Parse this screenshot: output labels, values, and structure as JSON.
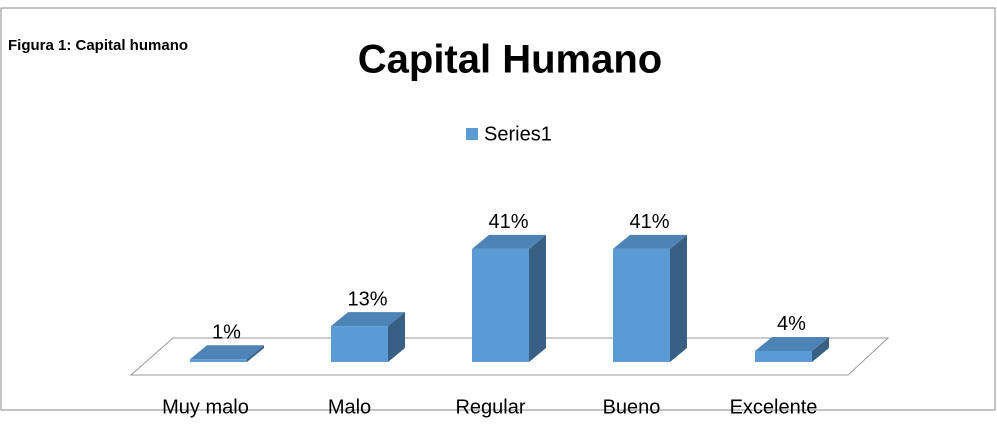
{
  "figure_label": "Figura 1: Capital humano",
  "chart_data": {
    "type": "bar3d",
    "title": "Capital Humano",
    "categories": [
      "Muy malo",
      "Malo",
      "Regular",
      "Bueno",
      "Excelente"
    ],
    "series": [
      {
        "name": "Series1",
        "color": "#5b9bd5",
        "values": [
          1,
          13,
          41,
          41,
          4
        ],
        "value_labels": [
          "1%",
          "13%",
          "41%",
          "41%",
          "4%"
        ]
      }
    ],
    "legend": "top"
  }
}
